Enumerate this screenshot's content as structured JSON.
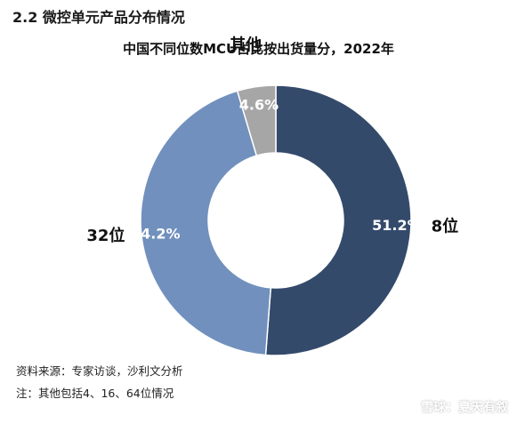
{
  "section_title": "2.2 微控单元产品分布情况",
  "chart_data": {
    "type": "pie",
    "title": "中国不同位数MCU占比按出货量分，2022年",
    "donut": true,
    "categories": [
      "8位",
      "32位",
      "其他"
    ],
    "values": [
      51.2,
      44.2,
      4.6
    ],
    "value_labels": [
      "51.2%",
      "44.2%",
      "4.6%"
    ],
    "colors": [
      "#344a6b",
      "#7190bd",
      "#a6a6a6"
    ],
    "legend": "none"
  },
  "notes": {
    "source": "资料来源：专家访谈，沙利文分析",
    "note": "注：其他包括4、16、64位情况"
  },
  "watermark": "雪球：夏天有叙"
}
